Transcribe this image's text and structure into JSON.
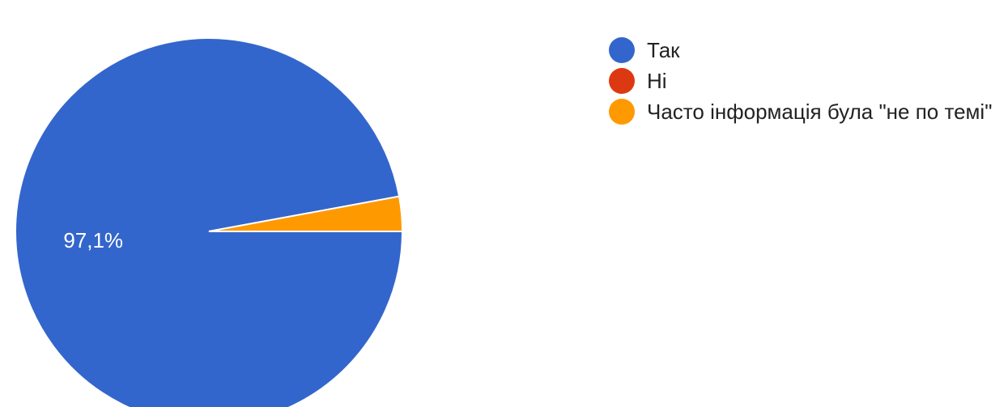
{
  "chart_data": {
    "type": "pie",
    "slices": [
      {
        "label": "Так",
        "value": 97.1,
        "color": "#3366cc",
        "data_label": "97,1%"
      },
      {
        "label": "Ні",
        "value": 0.0,
        "color": "#dc3912",
        "data_label": ""
      },
      {
        "label": "Часто інформація була \"не по темі\"",
        "value": 2.9,
        "color": "#ff9900",
        "data_label": ""
      }
    ],
    "start_angle_deg": 90,
    "direction": "clockwise",
    "legend_position": "right"
  }
}
